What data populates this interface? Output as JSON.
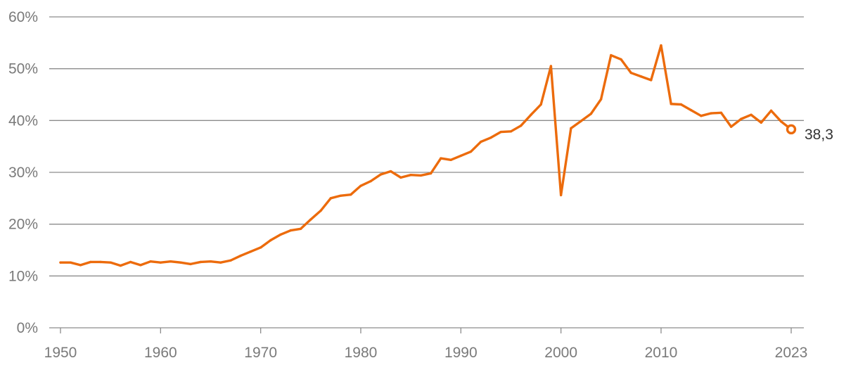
{
  "colors": {
    "series": "#ec6b0c"
  },
  "chart_data": {
    "type": "line",
    "title": "",
    "xlabel": "",
    "ylabel": "",
    "xlim": [
      1950,
      2023
    ],
    "ylim": [
      0,
      60
    ],
    "x_ticks": [
      1950,
      1960,
      1970,
      1980,
      1990,
      2000,
      2010,
      2023
    ],
    "x_tick_labels": [
      "1950",
      "1960",
      "1970",
      "1980",
      "1990",
      "2000",
      "2010",
      "2023"
    ],
    "y_ticks": [
      0,
      10,
      20,
      30,
      40,
      50,
      60
    ],
    "y_tick_labels": [
      "0%",
      "10%",
      "20%",
      "30%",
      "40%",
      "50%",
      "60%"
    ],
    "grid": true,
    "legend": "none",
    "end_label": "38,3",
    "series": [
      {
        "x": [
          1950,
          1951,
          1952,
          1953,
          1954,
          1955,
          1956,
          1957,
          1958,
          1959,
          1960,
          1961,
          1962,
          1963,
          1964,
          1965,
          1966,
          1967,
          1968,
          1969,
          1970,
          1971,
          1972,
          1973,
          1974,
          1975,
          1976,
          1977,
          1978,
          1979,
          1980,
          1981,
          1982,
          1983,
          1984,
          1985,
          1986,
          1987,
          1988,
          1989,
          1990,
          1991,
          1992,
          1993,
          1994,
          1995,
          1996,
          1997,
          1998,
          1999,
          2000,
          2001,
          2002,
          2003,
          2004,
          2005,
          2006,
          2007,
          2008,
          2009,
          2010,
          2011,
          2012,
          2013,
          2014,
          2015,
          2016,
          2017,
          2018,
          2019,
          2020,
          2021,
          2022,
          2023
        ],
        "values": [
          12.6,
          12.6,
          12.1,
          12.7,
          12.7,
          12.6,
          12.0,
          12.7,
          12.1,
          12.8,
          12.6,
          12.8,
          12.6,
          12.3,
          12.7,
          12.8,
          12.6,
          13.0,
          13.9,
          14.7,
          15.5,
          16.9,
          18.0,
          18.8,
          19.1,
          20.9,
          22.6,
          25.0,
          25.5,
          25.7,
          27.4,
          28.3,
          29.6,
          30.2,
          29.0,
          29.5,
          29.4,
          29.8,
          32.7,
          32.4,
          33.2,
          34.0,
          35.9,
          36.7,
          37.8,
          37.9,
          39.0,
          41.1,
          43.1,
          50.5,
          25.6,
          38.5,
          39.9,
          41.3,
          44.1,
          52.6,
          51.8,
          49.2,
          48.5,
          47.8,
          54.5,
          43.2,
          43.1,
          42.0,
          40.9,
          41.4,
          41.5,
          38.8,
          40.3,
          41.1,
          39.6,
          41.9,
          39.8,
          38.3
        ]
      }
    ]
  }
}
